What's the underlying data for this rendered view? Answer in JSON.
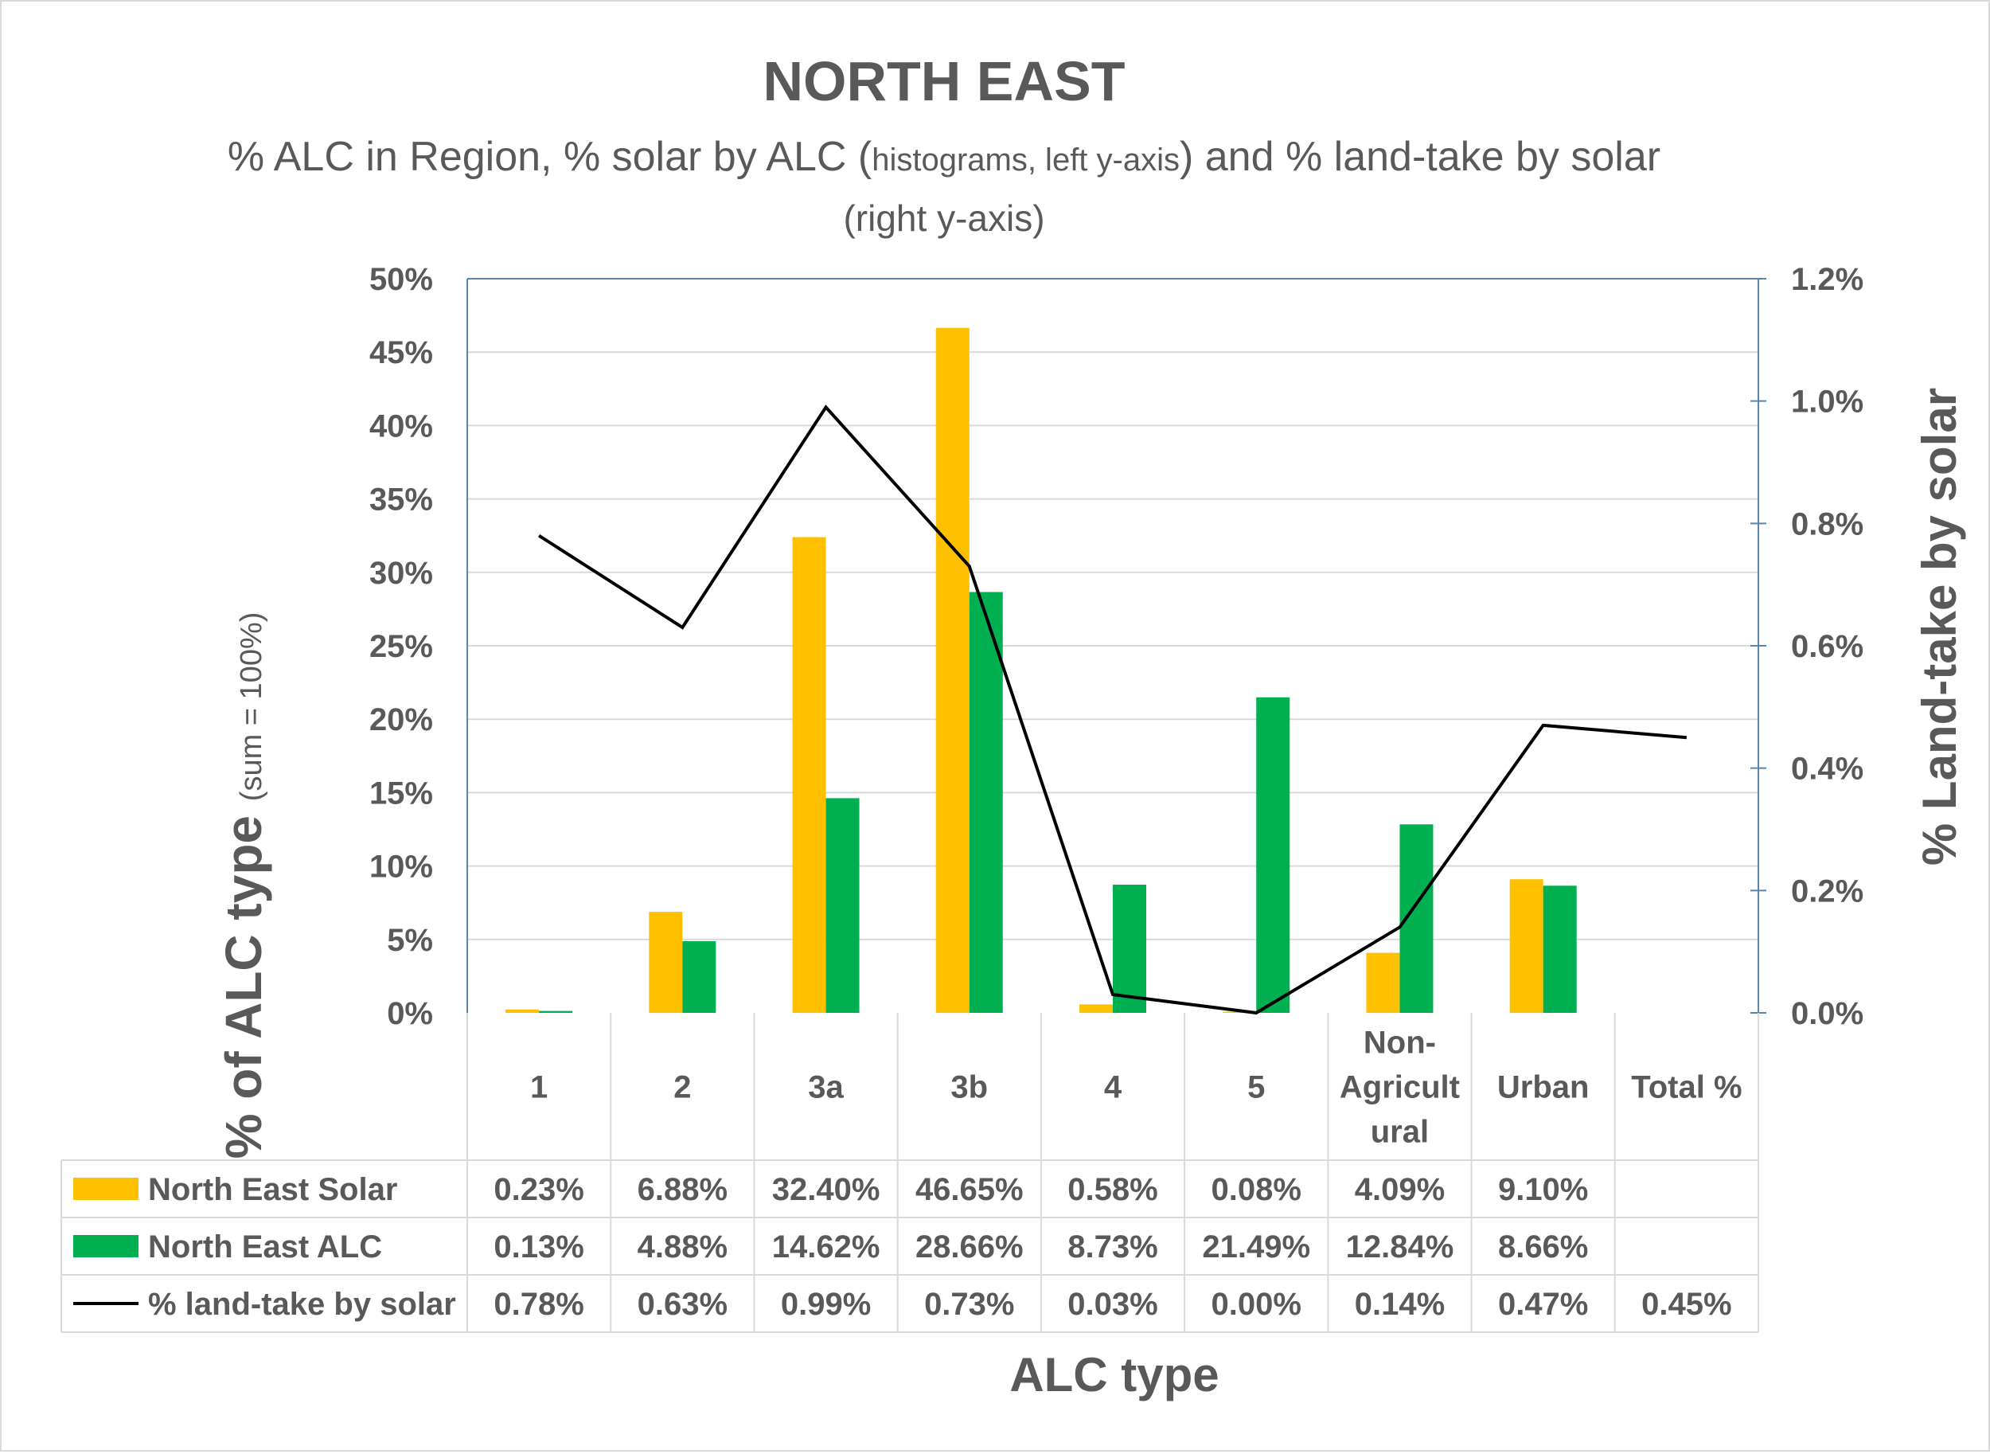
{
  "colors": {
    "solar": "#FFC000",
    "alc": "#00B050",
    "line": "#000000",
    "right_axis": "#5B85AA",
    "grid": "#D9D9D9",
    "text": "#595959"
  },
  "chart_data": {
    "type": "bar",
    "title": "NORTH EAST",
    "subtitle": {
      "line1_a": "% ALC in Region, % solar by ALC (",
      "line1_b": "histograms, left y-axis",
      "line1_c": ") and % land-take by solar",
      "line2": "(right y-axis)"
    },
    "ylabel": {
      "main": "% of ALC type ",
      "small": "(sum = 100%)"
    },
    "y2label": "% Land-take by solar",
    "xlabel": "ALC type",
    "ylim": [
      0,
      50
    ],
    "y2lim": [
      0,
      1.2
    ],
    "yticks": [
      "0%",
      "5%",
      "10%",
      "15%",
      "20%",
      "25%",
      "30%",
      "35%",
      "40%",
      "45%",
      "50%"
    ],
    "y2ticks": [
      "0.0%",
      "0.2%",
      "0.4%",
      "0.6%",
      "0.8%",
      "1.0%",
      "1.2%"
    ],
    "categories": [
      "1",
      "2",
      "3a",
      "3b",
      "4",
      "5",
      "Non-Agricultural",
      "Urban",
      "Total %"
    ],
    "category_lines": [
      [
        "1"
      ],
      [
        "2"
      ],
      [
        "3a"
      ],
      [
        "3b"
      ],
      [
        "4"
      ],
      [
        "5"
      ],
      [
        "Non-",
        "Agricult",
        "ural"
      ],
      [
        "Urban"
      ],
      [
        "Total %"
      ]
    ],
    "series": [
      {
        "name": "North East Solar",
        "axis": "left",
        "kind": "bar",
        "values": [
          0.23,
          6.88,
          32.4,
          46.65,
          0.58,
          0.08,
          4.09,
          9.1,
          null
        ],
        "labels": [
          "0.23%",
          "6.88%",
          "32.40%",
          "46.65%",
          "0.58%",
          "0.08%",
          "4.09%",
          "9.10%",
          ""
        ]
      },
      {
        "name": "North East ALC",
        "axis": "left",
        "kind": "bar",
        "values": [
          0.13,
          4.88,
          14.62,
          28.66,
          8.73,
          21.49,
          12.84,
          8.66,
          null
        ],
        "labels": [
          "0.13%",
          "4.88%",
          "14.62%",
          "28.66%",
          "8.73%",
          "21.49%",
          "12.84%",
          "8.66%",
          ""
        ]
      },
      {
        "name": "% land-take by solar",
        "axis": "right",
        "kind": "line",
        "values": [
          0.78,
          0.63,
          0.99,
          0.73,
          0.03,
          0.0,
          0.14,
          0.47,
          0.45
        ],
        "labels": [
          "0.78%",
          "0.63%",
          "0.99%",
          "0.73%",
          "0.03%",
          "0.00%",
          "0.14%",
          "0.47%",
          "0.45%"
        ]
      }
    ],
    "grid": true,
    "legend": "data-table"
  }
}
